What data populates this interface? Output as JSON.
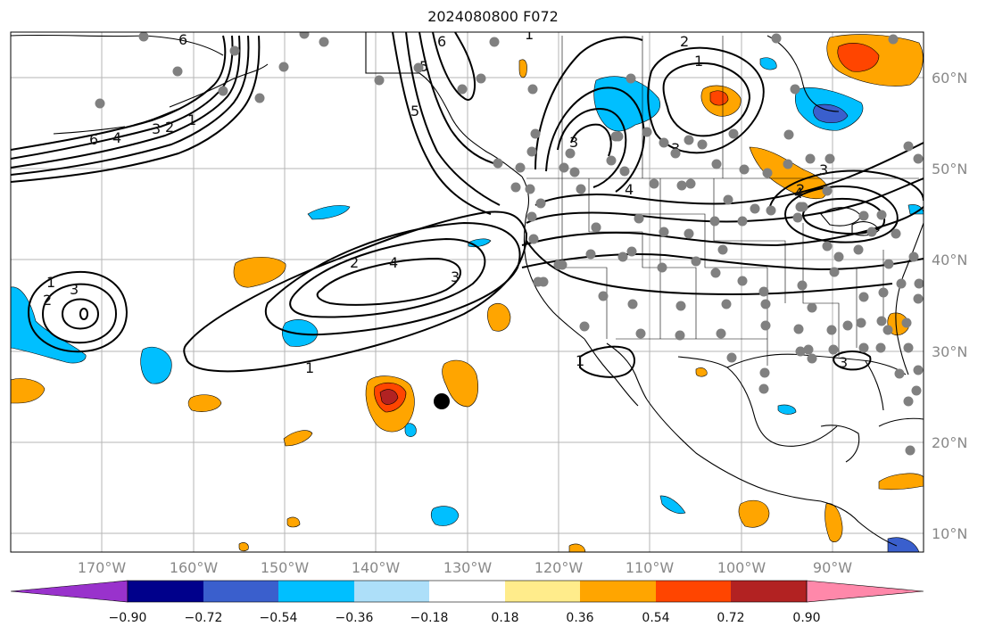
{
  "title": "2024080800 F072",
  "map": {
    "lon_range": [
      -180,
      -80
    ],
    "lat_range": [
      8,
      65
    ],
    "latitude_labels": [
      "60°N",
      "50°N",
      "40°N",
      "30°N",
      "20°N",
      "10°N"
    ],
    "longitude_labels": [
      "170°W",
      "160°W",
      "150°W",
      "140°W",
      "130°W",
      "120°W",
      "110°W",
      "100°W",
      "90°W"
    ],
    "gridlines": true
  },
  "colorbar": {
    "ticks": [
      "−0.90",
      "−0.72",
      "−0.54",
      "−0.36",
      "−0.18",
      "0.18",
      "0.36",
      "0.54",
      "0.72",
      "0.90"
    ],
    "colors": [
      "#9932CC",
      "#00008B",
      "#3A5FCD",
      "#00BFFF",
      "#ADDFF9",
      "#FFFFFF",
      "#FFEC8B",
      "#FFA500",
      "#FF4500",
      "#B22222",
      "#FF88AA"
    ],
    "extend": "both"
  },
  "contour_labels": [
    "6",
    "5",
    "6",
    "2",
    "1",
    "4",
    "3",
    "6",
    "4",
    "3",
    "2",
    "1",
    "2",
    "1",
    "5",
    "3",
    "4",
    "3",
    "3",
    "2",
    "4",
    "3",
    "1",
    "2",
    "3",
    "1",
    "1"
  ],
  "station_color": "#808080",
  "marker_color": "#000000"
}
